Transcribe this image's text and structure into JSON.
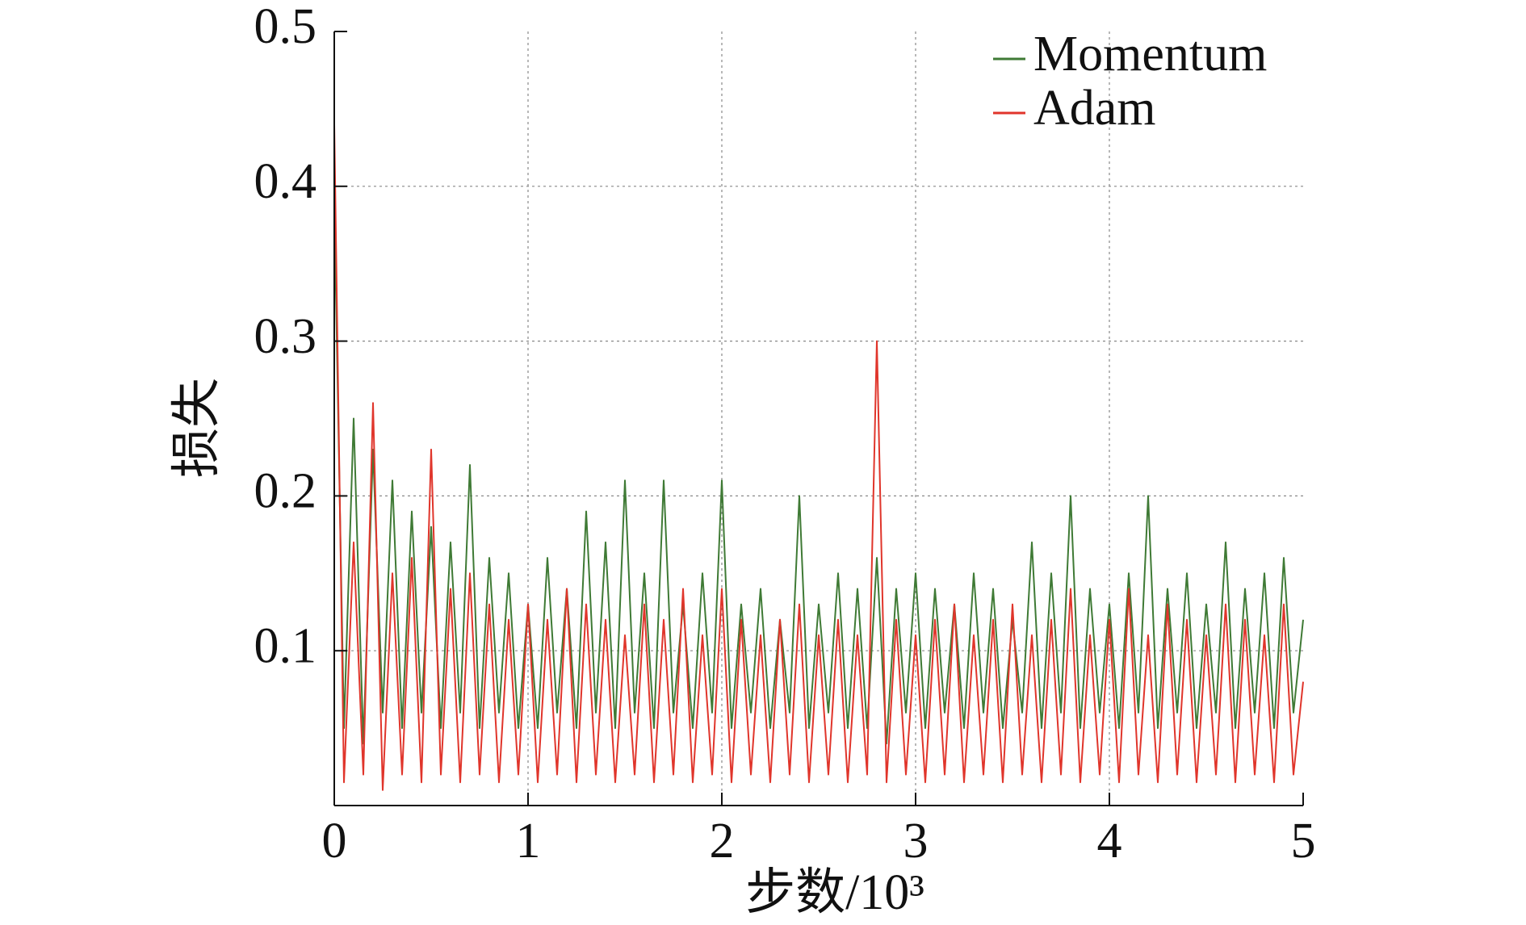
{
  "chart_data": {
    "type": "line",
    "xlabel": "步数/10³",
    "ylabel": "损失",
    "x": [
      0,
      0.05,
      0.1,
      0.15,
      0.2,
      0.25,
      0.3,
      0.35,
      0.4,
      0.45,
      0.5,
      0.55,
      0.6,
      0.65,
      0.7,
      0.75,
      0.8,
      0.85,
      0.9,
      0.95,
      1,
      1.05,
      1.1,
      1.15,
      1.2,
      1.25,
      1.3,
      1.35,
      1.4,
      1.45,
      1.5,
      1.55,
      1.6,
      1.65,
      1.7,
      1.75,
      1.8,
      1.85,
      1.9,
      1.95,
      2,
      2.05,
      2.1,
      2.15,
      2.2,
      2.25,
      2.3,
      2.35,
      2.4,
      2.45,
      2.5,
      2.55,
      2.6,
      2.65,
      2.7,
      2.75,
      2.8,
      2.85,
      2.9,
      2.95,
      3,
      3.05,
      3.1,
      3.15,
      3.2,
      3.25,
      3.3,
      3.35,
      3.4,
      3.45,
      3.5,
      3.55,
      3.6,
      3.65,
      3.7,
      3.75,
      3.8,
      3.85,
      3.9,
      3.95,
      4,
      4.05,
      4.1,
      4.15,
      4.2,
      4.25,
      4.3,
      4.35,
      4.4,
      4.45,
      4.5,
      4.55,
      4.6,
      4.65,
      4.7,
      4.75,
      4.8,
      4.85,
      4.9,
      4.95,
      5
    ],
    "series": [
      {
        "name": "Momentum",
        "color": "#3f7a35",
        "values": [
          0.39,
          0.05,
          0.25,
          0.04,
          0.23,
          0.06,
          0.21,
          0.05,
          0.19,
          0.06,
          0.18,
          0.05,
          0.17,
          0.06,
          0.22,
          0.05,
          0.16,
          0.06,
          0.15,
          0.05,
          0.13,
          0.05,
          0.16,
          0.06,
          0.14,
          0.05,
          0.19,
          0.06,
          0.17,
          0.05,
          0.21,
          0.06,
          0.15,
          0.05,
          0.21,
          0.06,
          0.13,
          0.05,
          0.15,
          0.06,
          0.21,
          0.05,
          0.13,
          0.06,
          0.14,
          0.05,
          0.12,
          0.06,
          0.2,
          0.05,
          0.13,
          0.06,
          0.15,
          0.05,
          0.14,
          0.05,
          0.16,
          0.04,
          0.14,
          0.06,
          0.15,
          0.05,
          0.14,
          0.06,
          0.13,
          0.05,
          0.15,
          0.06,
          0.14,
          0.05,
          0.12,
          0.06,
          0.17,
          0.05,
          0.15,
          0.06,
          0.2,
          0.05,
          0.14,
          0.06,
          0.13,
          0.05,
          0.15,
          0.06,
          0.2,
          0.05,
          0.14,
          0.06,
          0.15,
          0.05,
          0.13,
          0.06,
          0.17,
          0.05,
          0.14,
          0.06,
          0.15,
          0.05,
          0.16,
          0.06,
          0.12
        ]
      },
      {
        "name": "Adam",
        "color": "#e0352b",
        "values": [
          0.44,
          0.015,
          0.17,
          0.02,
          0.26,
          0.01,
          0.15,
          0.02,
          0.16,
          0.015,
          0.23,
          0.02,
          0.14,
          0.015,
          0.15,
          0.02,
          0.13,
          0.015,
          0.12,
          0.02,
          0.13,
          0.015,
          0.12,
          0.02,
          0.14,
          0.015,
          0.13,
          0.02,
          0.12,
          0.015,
          0.11,
          0.02,
          0.13,
          0.015,
          0.12,
          0.02,
          0.14,
          0.015,
          0.11,
          0.02,
          0.14,
          0.015,
          0.12,
          0.02,
          0.11,
          0.015,
          0.12,
          0.02,
          0.13,
          0.015,
          0.11,
          0.02,
          0.12,
          0.015,
          0.11,
          0.02,
          0.3,
          0.015,
          0.12,
          0.02,
          0.11,
          0.015,
          0.12,
          0.02,
          0.13,
          0.015,
          0.11,
          0.02,
          0.12,
          0.015,
          0.13,
          0.02,
          0.11,
          0.015,
          0.12,
          0.02,
          0.14,
          0.015,
          0.11,
          0.02,
          0.12,
          0.015,
          0.14,
          0.02,
          0.11,
          0.015,
          0.13,
          0.02,
          0.12,
          0.015,
          0.11,
          0.02,
          0.13,
          0.015,
          0.12,
          0.02,
          0.11,
          0.015,
          0.13,
          0.02,
          0.08
        ]
      }
    ],
    "xlim": [
      0,
      5
    ],
    "xticks": [
      0,
      1,
      2,
      3,
      4,
      5
    ],
    "ylim": [
      0,
      0.5
    ],
    "yticks": [
      0.1,
      0.2,
      0.3,
      0.4,
      0.5
    ],
    "grid": true,
    "legend": "upper right"
  }
}
